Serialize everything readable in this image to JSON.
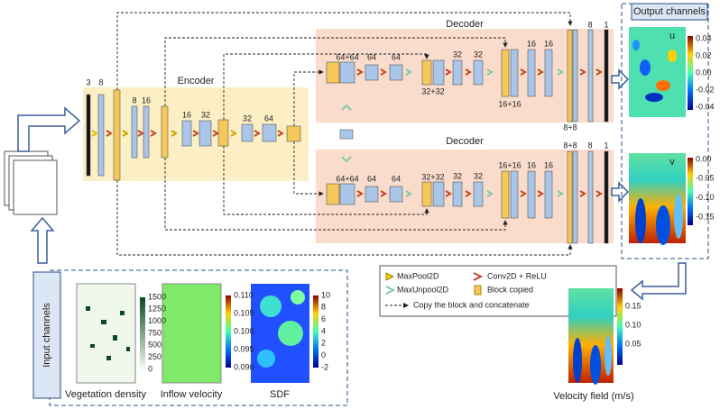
{
  "encoder": {
    "title": "Encoder",
    "input_labels": [
      "3",
      "8"
    ],
    "labels": [
      "8",
      "16",
      "16",
      "32",
      "32",
      "64"
    ]
  },
  "decoders": [
    {
      "title": "Decoder",
      "labels": [
        "64+64",
        "64",
        "64",
        "32+32",
        "32",
        "32",
        "16+16",
        "16",
        "16",
        "8+8",
        "8",
        "1"
      ]
    },
    {
      "title": "Decoder",
      "labels": [
        "64+64",
        "64",
        "64",
        "32+32",
        "32",
        "32",
        "16+16",
        "16",
        "16",
        "8+8",
        "8",
        "1"
      ]
    }
  ],
  "output": {
    "title": "Output channels",
    "panels": [
      {
        "label": "u",
        "ticks": [
          "0.04",
          "0.02",
          "0.00",
          "-0.02",
          "-0.04"
        ]
      },
      {
        "label": "v",
        "ticks": [
          "0.00",
          "-0.05",
          "-0.10",
          "-0.15"
        ]
      }
    ]
  },
  "legend": {
    "items": [
      "MaxPool2D",
      "Conv2D + ReLU",
      "MaxUnpool2D",
      "Block copied",
      "Copy the block and concatenate"
    ]
  },
  "input": {
    "title": "Input channels",
    "panels": [
      {
        "caption": "Vegetation density",
        "ticks": [
          "1500",
          "1250",
          "1000",
          "750",
          "500",
          "250",
          "0"
        ]
      },
      {
        "caption": "Inflow velocity",
        "ticks": [
          "0.110",
          "0.105",
          "0.100",
          "0.095",
          "0.090"
        ]
      },
      {
        "caption": "SDF",
        "ticks": [
          "10",
          "8",
          "6",
          "4",
          "2",
          "0",
          "-2"
        ]
      }
    ]
  },
  "velocity": {
    "caption": "Velocity field (m/s)",
    "ticks": [
      "0.15",
      "0.10",
      "0.05"
    ]
  }
}
